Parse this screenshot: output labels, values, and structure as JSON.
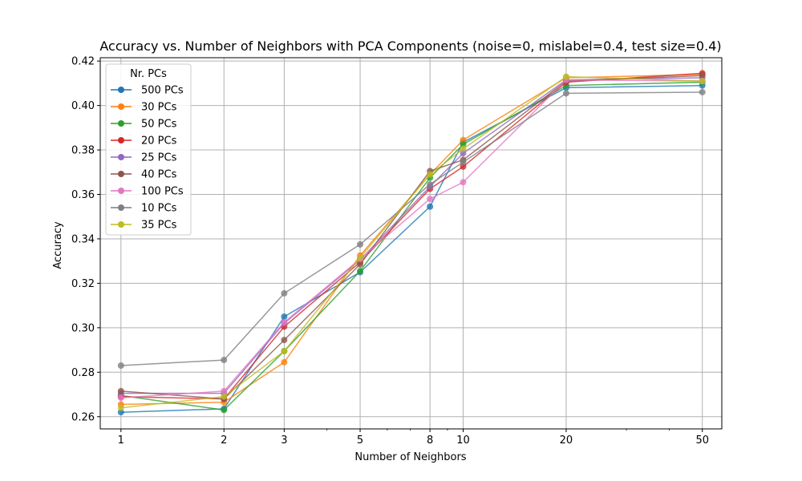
{
  "chart_data": {
    "type": "line",
    "title": "Accuracy vs. Number of Neighbors with PCA Components (noise=0, mislabel=0.4, test size=0.4)",
    "xlabel": "Number of Neighbors",
    "ylabel": "Accuracy",
    "xscale": "log",
    "x": [
      1,
      2,
      3,
      5,
      8,
      10,
      20,
      50
    ],
    "xticks": [
      1,
      2,
      3,
      5,
      8,
      10,
      20,
      50
    ],
    "xtick_labels": [
      "1",
      "2",
      "3",
      "5",
      "8",
      "10",
      "20",
      "50"
    ],
    "xlim": [
      0.87,
      57
    ],
    "ylim": [
      0.2545,
      0.4215
    ],
    "yticks": [
      0.26,
      0.28,
      0.3,
      0.32,
      0.34,
      0.36,
      0.38,
      0.4,
      0.42
    ],
    "ytick_labels": [
      "0.26",
      "0.28",
      "0.30",
      "0.32",
      "0.34",
      "0.36",
      "0.38",
      "0.40",
      "0.42"
    ],
    "grid": true,
    "legend": {
      "title": "Nr. PCs",
      "placement": "upper-left"
    },
    "series": [
      {
        "name": "500 PCs",
        "color": "#1f77b4",
        "values": [
          0.262,
          0.2635,
          0.305,
          0.325,
          0.3545,
          0.3835,
          0.408,
          0.409
        ]
      },
      {
        "name": "30 PCs",
        "color": "#ff7f0e",
        "values": [
          0.2655,
          0.2665,
          0.2845,
          0.3325,
          0.369,
          0.3845,
          0.4125,
          0.414
        ]
      },
      {
        "name": "50 PCs",
        "color": "#2ca02c",
        "values": [
          0.2695,
          0.263,
          0.2895,
          0.3255,
          0.3675,
          0.3825,
          0.409,
          0.4105
        ]
      },
      {
        "name": "20 PCs",
        "color": "#d62728",
        "values": [
          0.269,
          0.268,
          0.3005,
          0.3295,
          0.3625,
          0.3725,
          0.4105,
          0.4145
        ]
      },
      {
        "name": "25 PCs",
        "color": "#9467bd",
        "values": [
          0.2705,
          0.2705,
          0.302,
          0.3305,
          0.3635,
          0.3785,
          0.4115,
          0.4125
        ]
      },
      {
        "name": "40 PCs",
        "color": "#8c564b",
        "values": [
          0.2715,
          0.268,
          0.2945,
          0.3285,
          0.3705,
          0.3755,
          0.411,
          0.4135
        ]
      },
      {
        "name": "100 PCs",
        "color": "#e377c2",
        "values": [
          0.2685,
          0.2715,
          0.3025,
          0.331,
          0.358,
          0.3655,
          0.4115,
          0.411
        ]
      },
      {
        "name": "10 PCs",
        "color": "#7f7f7f",
        "values": [
          0.283,
          0.2855,
          0.3155,
          0.3375,
          0.3645,
          0.3745,
          0.4055,
          0.406
        ]
      },
      {
        "name": "35 PCs",
        "color": "#bcbd22",
        "values": [
          0.264,
          0.269,
          0.2895,
          0.3315,
          0.369,
          0.3805,
          0.413,
          0.411
        ]
      }
    ]
  }
}
